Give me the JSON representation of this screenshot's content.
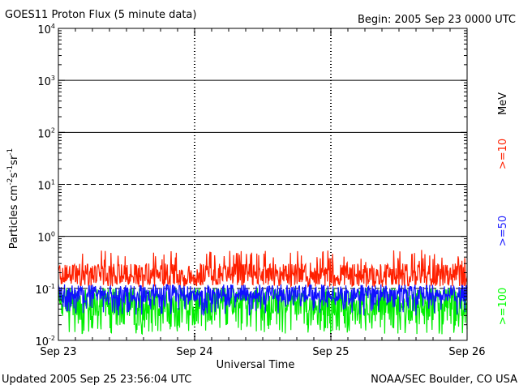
{
  "header": {
    "title": "GOES11 Proton Flux (5 minute data)",
    "begin": "Begin: 2005 Sep 23 0000 UTC"
  },
  "footer": {
    "updated": "Updated 2005 Sep 25 23:56:04 UTC",
    "credit": "NOAA/SEC Boulder, CO USA"
  },
  "chart_data": {
    "type": "line",
    "title": "GOES11 Proton Flux (5 minute data)",
    "xlabel": "Universal Time",
    "ylabel": "Particles cm-2 s-1 sr-1",
    "yscale": "log",
    "ylim": [
      0.01,
      10000
    ],
    "xlim_days": [
      0,
      3
    ],
    "x_ticks": [
      {
        "day": 0,
        "label": "Sep 23"
      },
      {
        "day": 1,
        "label": "Sep 24"
      },
      {
        "day": 2,
        "label": "Sep 25"
      },
      {
        "day": 3,
        "label": "Sep 26"
      }
    ],
    "y_ticks": [
      {
        "value": 0.01,
        "base": "10",
        "exp": "-2"
      },
      {
        "value": 0.1,
        "base": "10",
        "exp": "-1"
      },
      {
        "value": 1,
        "base": "10",
        "exp": "0"
      },
      {
        "value": 10,
        "base": "10",
        "exp": "1"
      },
      {
        "value": 100,
        "base": "10",
        "exp": "2"
      },
      {
        "value": 1000,
        "base": "10",
        "exp": "3"
      },
      {
        "value": 10000,
        "base": "10",
        "exp": "4"
      }
    ],
    "threshold_lines": [
      {
        "value": 10,
        "style": "dashed"
      },
      {
        "value": 0.1,
        "style": "dashed"
      }
    ],
    "solid_gridlines": [
      1,
      100,
      1000
    ],
    "legend": {
      "unit": "MeV",
      "entries": [
        {
          "label": ">=10",
          "color": "#ff2000"
        },
        {
          "label": ">=50",
          "color": "#2020ff"
        },
        {
          "label": ">=100",
          "color": "#00ff00"
        }
      ]
    },
    "series": [
      {
        "name": ">=10 MeV",
        "color": "#ff2000",
        "typical": 0.2,
        "range": [
          0.09,
          0.6
        ]
      },
      {
        "name": ">=50 MeV",
        "color": "#1010ff",
        "typical": 0.085,
        "range": [
          0.03,
          0.15
        ]
      },
      {
        "name": ">=100 MeV",
        "color": "#00ee00",
        "typical": 0.05,
        "range": [
          0.012,
          0.1
        ]
      }
    ]
  }
}
